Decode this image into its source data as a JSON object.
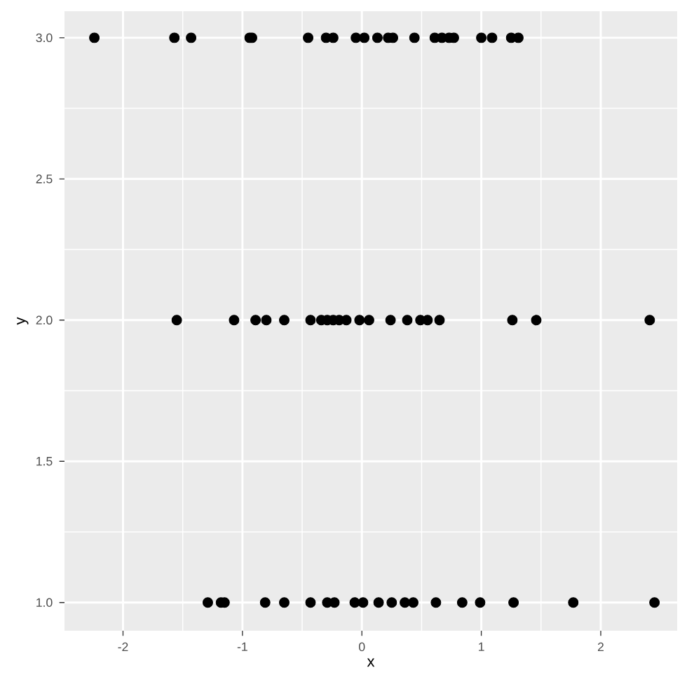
{
  "chart_data": {
    "type": "scatter",
    "xlabel": "x",
    "ylabel": "y",
    "x": [
      -2.24,
      -1.57,
      -1.43,
      -0.94,
      -0.92,
      -0.45,
      -0.3,
      -0.24,
      -0.05,
      0.02,
      0.13,
      0.22,
      0.26,
      0.44,
      0.61,
      0.67,
      0.73,
      0.77,
      1.0,
      1.09,
      1.25,
      1.31,
      -1.55,
      -1.07,
      -0.89,
      -0.8,
      -0.65,
      -0.43,
      -0.34,
      -0.29,
      -0.24,
      -0.19,
      -0.13,
      -0.02,
      0.06,
      0.24,
      0.38,
      0.49,
      0.55,
      0.65,
      1.26,
      1.46,
      2.41,
      -1.29,
      -1.18,
      -1.15,
      -0.81,
      -0.65,
      -0.43,
      -0.29,
      -0.23,
      -0.06,
      0.01,
      0.14,
      0.25,
      0.36,
      0.43,
      0.62,
      0.84,
      0.99,
      1.27,
      1.77,
      2.45
    ],
    "values": [
      3,
      3,
      3,
      3,
      3,
      3,
      3,
      3,
      3,
      3,
      3,
      3,
      3,
      3,
      3,
      3,
      3,
      3,
      3,
      3,
      3,
      3,
      2,
      2,
      2,
      2,
      2,
      2,
      2,
      2,
      2,
      2,
      2,
      2,
      2,
      2,
      2,
      2,
      2,
      2,
      2,
      2,
      2,
      1,
      1,
      1,
      1,
      1,
      1,
      1,
      1,
      1,
      1,
      1,
      1,
      1,
      1,
      1,
      1,
      1,
      1,
      1,
      1
    ],
    "color": "#000000",
    "marker": "circle",
    "grid": true,
    "xlim": [
      -2.49,
      2.64
    ],
    "ylim": [
      0.9,
      3.094
    ],
    "xticks": [
      {
        "value": -2,
        "label": "-2"
      },
      {
        "value": -1,
        "label": "-1"
      },
      {
        "value": 0,
        "label": "0"
      },
      {
        "value": 1,
        "label": "1"
      },
      {
        "value": 2,
        "label": "2"
      }
    ],
    "yticks": [
      {
        "value": 1,
        "label": "1.0"
      },
      {
        "value": 1.5,
        "label": "1.5"
      },
      {
        "value": 2,
        "label": "2.0"
      },
      {
        "value": 2.5,
        "label": "2.5"
      },
      {
        "value": 3,
        "label": "3.0"
      }
    ]
  }
}
